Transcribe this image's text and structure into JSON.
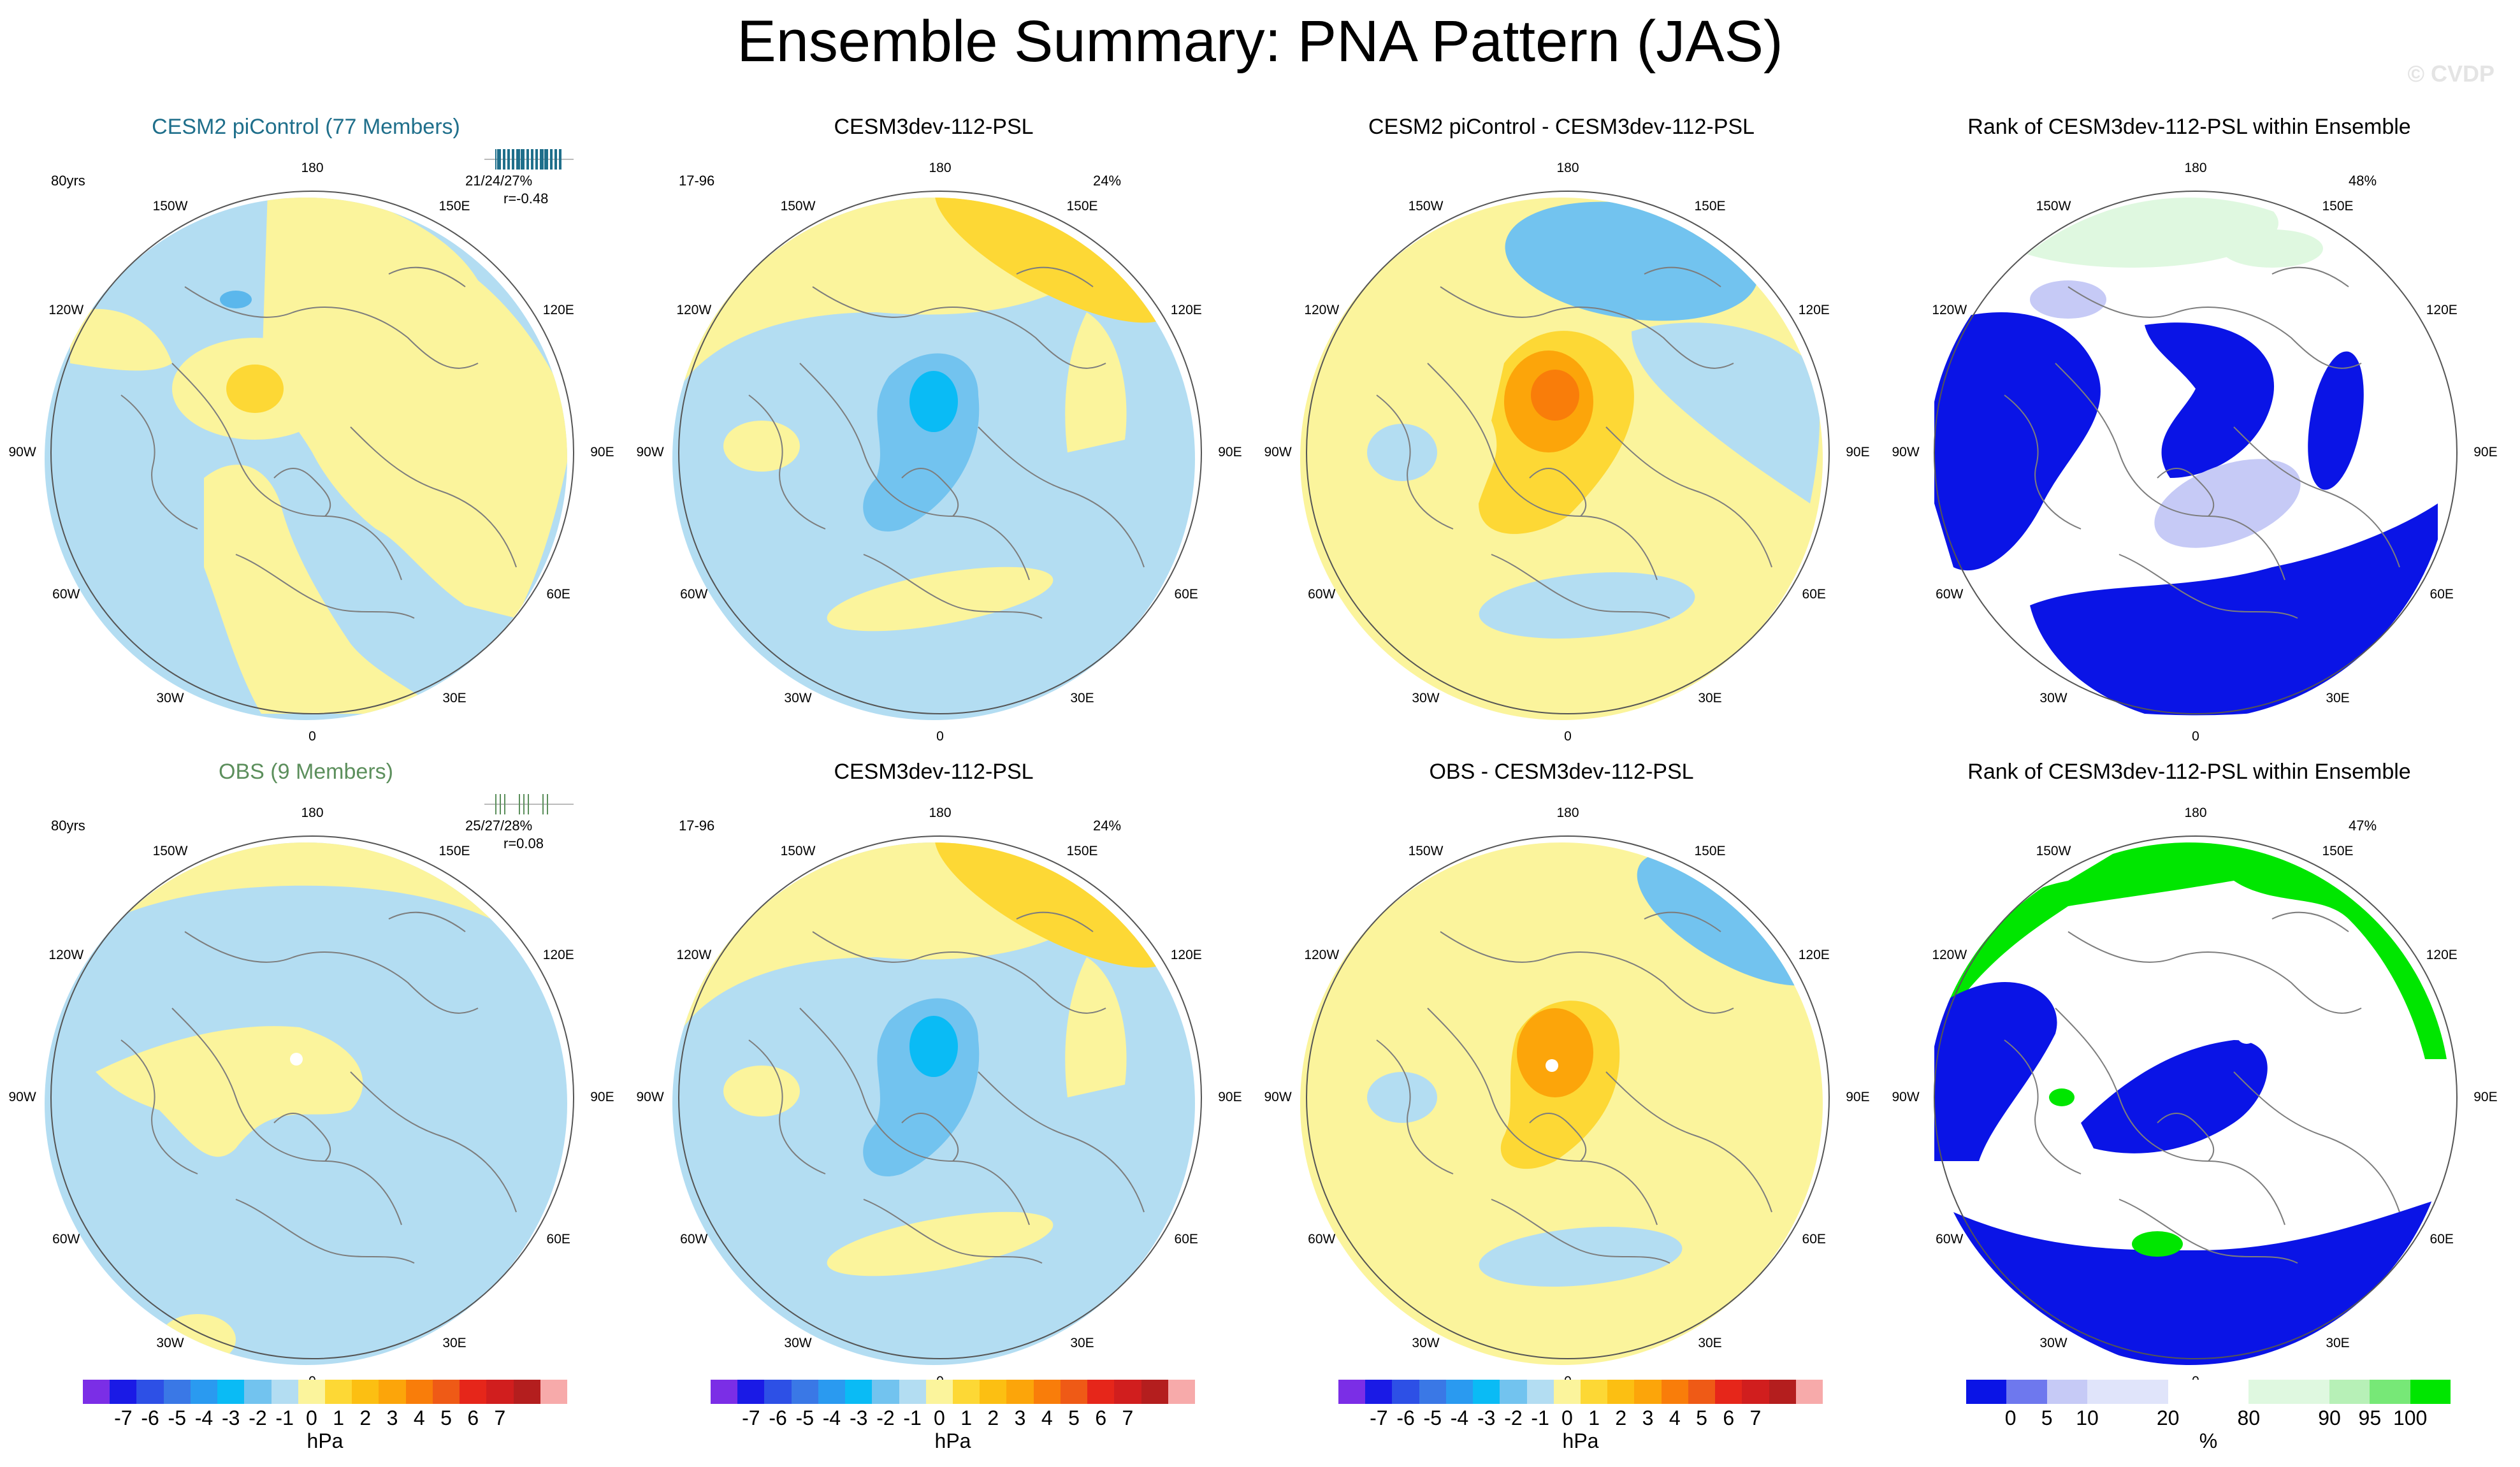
{
  "title": "Ensemble Summary: PNA Pattern (JAS)",
  "watermark": "© CVDP",
  "colors": {
    "ocean_blue": "#b3ddf2",
    "light_yellow": "#fbf49c",
    "gold": "#fdd835",
    "orange": "#fca50a",
    "dark_orange": "#f97d0a",
    "red_orange": "#ef5a16",
    "mid_blue": "#72c3ef",
    "blue": "#52a6e6",
    "cyan": "#0abbf5",
    "rank_dark_blue": "#0a14e6",
    "rank_mid_blue": "#6e78ee",
    "rank_light_blue": "#c6caf6",
    "rank_pale": "#e0e8fa",
    "rank_pale_green": "#dff8e0",
    "rank_green": "#00e600",
    "title_teal": "#1f6f8b",
    "title_green": "#5c8f5c"
  },
  "longitudes": [
    "180",
    "150E",
    "120E",
    "90E",
    "60E",
    "30E",
    "0",
    "30W",
    "60W",
    "90W",
    "120W",
    "150W"
  ],
  "panels": [
    {
      "title": "CESM2 piControl (77 Members)",
      "left_label": "80yrs",
      "right_label_1": "21/24/27%",
      "right_label_2": "r=-0.48",
      "type": "ens1",
      "title_color": "title_teal"
    },
    {
      "title": "CESM3dev-112-PSL",
      "left_label": "17-96",
      "right_label_1": "24%",
      "right_label_2": "",
      "type": "model"
    },
    {
      "title": "CESM2 piControl - CESM3dev-112-PSL",
      "left_label": "",
      "right_label_1": "",
      "right_label_2": "",
      "type": "diff"
    },
    {
      "title": "Rank of CESM3dev-112-PSL within Ensemble",
      "left_label": "",
      "right_label_1": "48%",
      "right_label_2": "",
      "type": "rank1"
    },
    {
      "title": "OBS (9 Members)",
      "left_label": "80yrs",
      "right_label_1": "25/27/28%",
      "right_label_2": "r=0.08",
      "type": "obs",
      "title_color": "title_green"
    },
    {
      "title": "CESM3dev-112-PSL",
      "left_label": "17-96",
      "right_label_1": "24%",
      "right_label_2": "",
      "type": "model"
    },
    {
      "title": "OBS - CESM3dev-112-PSL",
      "left_label": "",
      "right_label_1": "",
      "right_label_2": "",
      "type": "diff2"
    },
    {
      "title": "Rank of CESM3dev-112-PSL within Ensemble",
      "left_label": "",
      "right_label_1": "47%",
      "right_label_2": "",
      "type": "rank2"
    }
  ],
  "colorbar_hpa": {
    "unit": "hPa",
    "colors": [
      "#7b2ee6",
      "#1a1ae6",
      "#2d50e6",
      "#3a78e6",
      "#2a9af0",
      "#0abbf5",
      "#72c3ef",
      "#b3ddf2",
      "#fbf49c",
      "#fdd835",
      "#fcbf12",
      "#fca50a",
      "#f97d0a",
      "#ef5a16",
      "#e6261a",
      "#d11e1e",
      "#b41e1e",
      "#f7aaaa"
    ],
    "ticks": [
      "-7",
      "-6",
      "-5",
      "-4",
      "-3",
      "-2",
      "-1",
      "0",
      "1",
      "2",
      "3",
      "4",
      "5",
      "6",
      "7"
    ]
  },
  "colorbar_rank": {
    "unit": "%",
    "colors": [
      "#0a14e6",
      "#6e78ee",
      "#c6caf6",
      "#e0e4fa",
      "#e0e4fa",
      "#ffffff",
      "#ffffff",
      "#dff8e0",
      "#dff8e0",
      "#b7f0b7",
      "#77e877",
      "#00e600"
    ],
    "ticks": [
      "0",
      "5",
      "10",
      "20",
      "80",
      "90",
      "95",
      "100"
    ]
  }
}
